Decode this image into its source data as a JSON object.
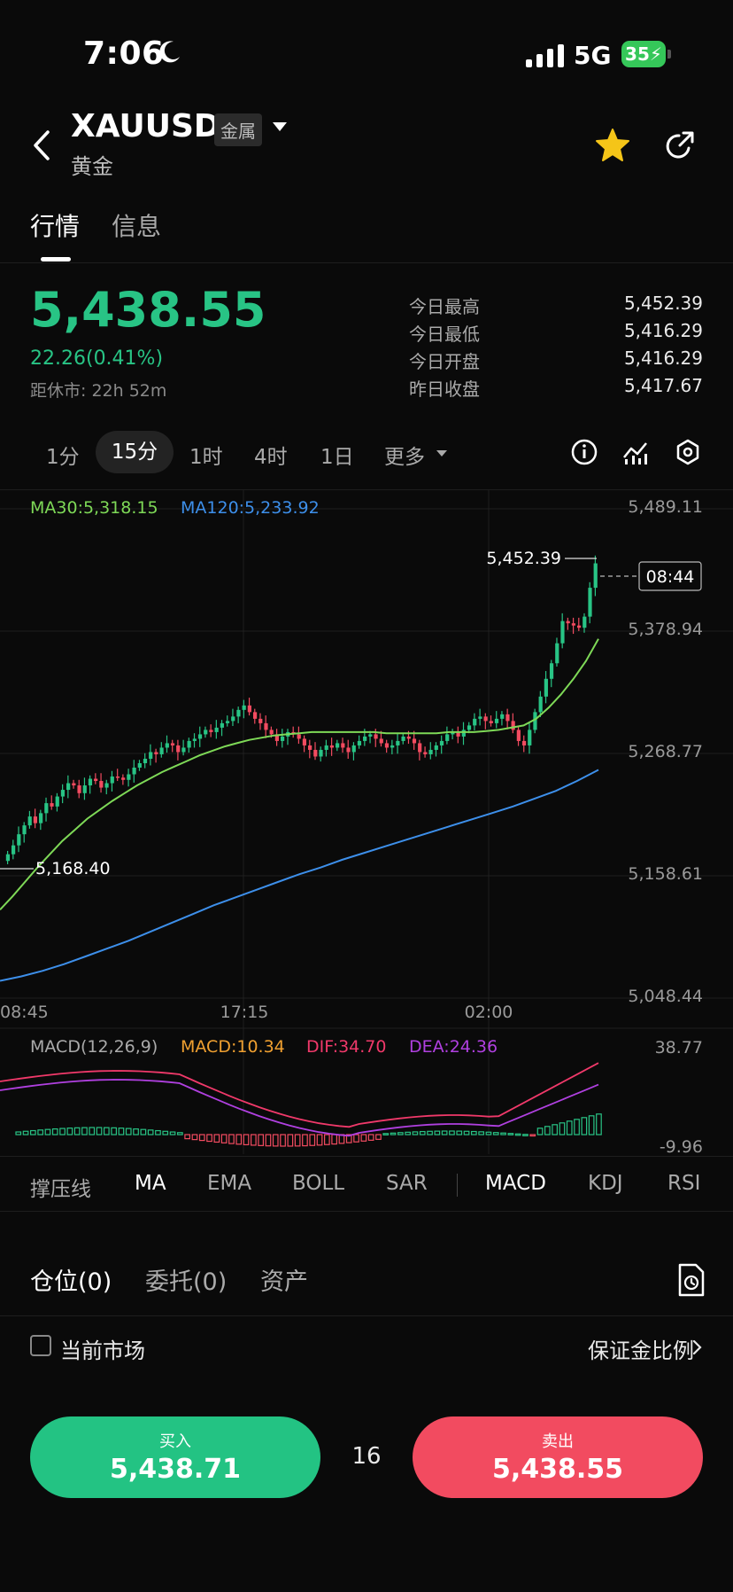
{
  "status_bar": {
    "time": "7:06",
    "network": "5G",
    "battery": "35"
  },
  "header": {
    "symbol": "XAUUSD",
    "tag": "金属",
    "name": "黄金"
  },
  "tabs": [
    {
      "label": "行情"
    },
    {
      "label": "信息"
    }
  ],
  "quote": {
    "price": "5,438.55",
    "change": "22.26(0.41%)",
    "closing_countdown": "距休市: 22h 52m",
    "stats": [
      {
        "label": "今日最高",
        "value": "5,452.39"
      },
      {
        "label": "今日最低",
        "value": "5,416.29"
      },
      {
        "label": "今日开盘",
        "value": "5,416.29"
      },
      {
        "label": "昨日收盘",
        "value": "5,417.67"
      }
    ]
  },
  "intervals": [
    "1分",
    "15分",
    "1时",
    "4时",
    "1日",
    "更多"
  ],
  "active_interval": "15分",
  "colors": {
    "up": "#28c485",
    "down": "#f24b60",
    "ma30": "#7ed957",
    "ma120": "#3d8fea",
    "macd": "#f0a030",
    "dif": "#f0396a",
    "dea": "#b040e0"
  },
  "chart_data": {
    "type": "line",
    "ma_labels": {
      "ma30": "MA30:5,318.15",
      "ma120": "MA120:5,233.92"
    },
    "y_ticks": [
      "5,489.11",
      "5,378.94",
      "5,268.77",
      "5,158.61",
      "5,048.44"
    ],
    "x_ticks": [
      "08:45",
      "17:15",
      "02:00"
    ],
    "ylim": [
      5048.44,
      5489.11
    ],
    "high_marker": "5,452.39",
    "low_marker": "5,168.40",
    "countdown": "08:44",
    "close_series": [
      5178,
      5186,
      5196,
      5204,
      5212,
      5206,
      5215,
      5224,
      5221,
      5230,
      5236,
      5242,
      5240,
      5233,
      5240,
      5246,
      5244,
      5238,
      5242,
      5248,
      5247,
      5245,
      5250,
      5256,
      5260,
      5264,
      5270,
      5268,
      5274,
      5278,
      5276,
      5270,
      5274,
      5280,
      5282,
      5286,
      5290,
      5288,
      5292,
      5296,
      5298,
      5302,
      5308,
      5312,
      5306,
      5300,
      5296,
      5290,
      5286,
      5280,
      5284,
      5288,
      5286,
      5282,
      5276,
      5272,
      5266,
      5272,
      5276,
      5274,
      5278,
      5274,
      5270,
      5276,
      5280,
      5284,
      5286,
      5282,
      5278,
      5274,
      5276,
      5280,
      5284,
      5282,
      5278,
      5270,
      5268,
      5272,
      5276,
      5280,
      5286,
      5288,
      5284,
      5290,
      5294,
      5300,
      5302,
      5298,
      5296,
      5300,
      5304,
      5298,
      5290,
      5280,
      5276,
      5290,
      5306,
      5320,
      5336,
      5350,
      5368,
      5388,
      5386,
      5384,
      5382,
      5392,
      5418,
      5440
    ],
    "ma30_series": [
      5128,
      5140,
      5153,
      5166,
      5178,
      5190,
      5200,
      5210,
      5218,
      5226,
      5233,
      5240,
      5246,
      5252,
      5257,
      5262,
      5267,
      5271,
      5275,
      5278,
      5281,
      5283,
      5285,
      5286,
      5287,
      5288,
      5288,
      5288,
      5288,
      5288,
      5288,
      5287,
      5287,
      5287,
      5287,
      5287,
      5288,
      5288,
      5288,
      5289,
      5290,
      5292,
      5294,
      5300,
      5310,
      5322,
      5336,
      5352,
      5372
    ],
    "ma120_series": [
      5064,
      5068,
      5073,
      5079,
      5086,
      5093,
      5100,
      5108,
      5116,
      5124,
      5132,
      5139,
      5146,
      5153,
      5160,
      5166,
      5173,
      5179,
      5185,
      5191,
      5197,
      5203,
      5209,
      5215,
      5221,
      5228,
      5235,
      5244,
      5254
    ],
    "macd": {
      "legend": {
        "title": "MACD(12,26,9)",
        "macd": "MACD:10.34",
        "dif": "DIF:34.70",
        "dea": "DEA:24.36"
      },
      "y_ticks": [
        "38.77",
        "-9.96"
      ]
    }
  },
  "indicators": [
    "撑压线",
    "MA",
    "EMA",
    "BOLL",
    "SAR",
    "MACD",
    "KDJ",
    "RSI"
  ],
  "positions": {
    "tabs": [
      "仓位(0)",
      "委托(0)",
      "资产"
    ],
    "current_market": "当前市场",
    "margin_ratio": "保证金比例"
  },
  "trade": {
    "buy_label": "买入",
    "buy_price": "5,438.71",
    "spread": "16",
    "sell_label": "卖出",
    "sell_price": "5,438.55"
  }
}
